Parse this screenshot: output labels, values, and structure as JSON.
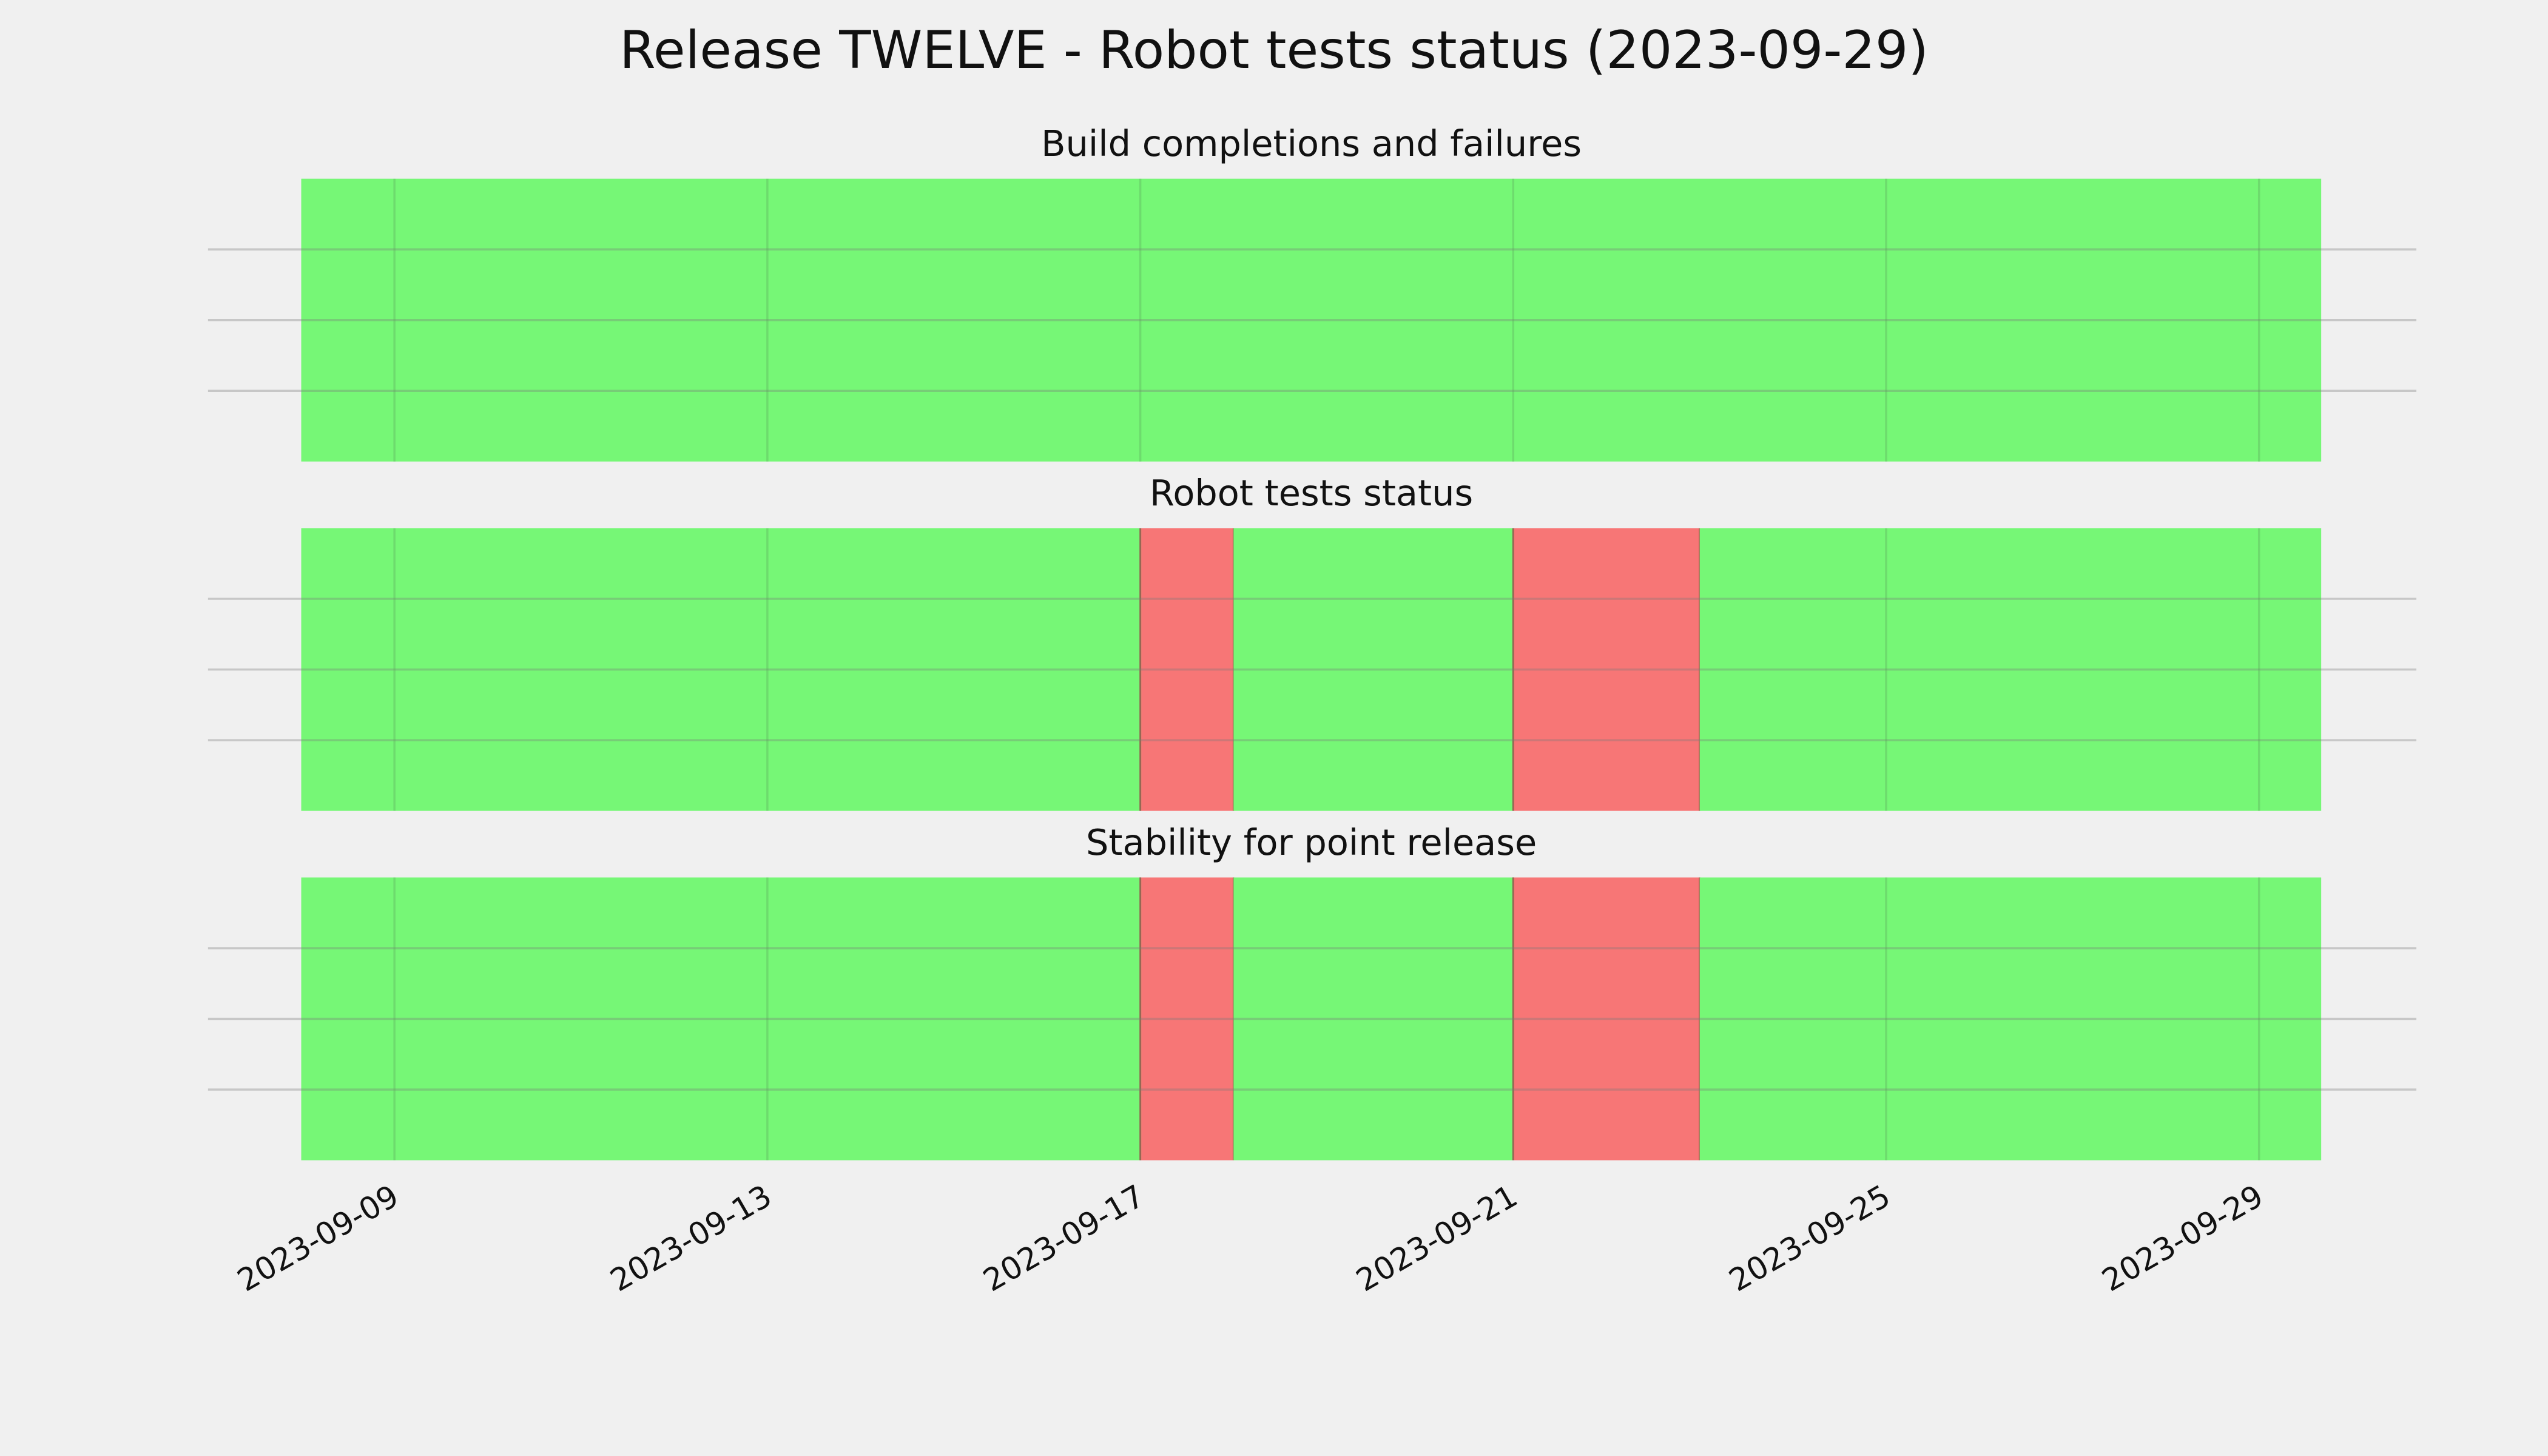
{
  "title": "Release TWELVE - Robot tests status (2023-09-29)",
  "chart_data": [
    {
      "type": "timeline",
      "title": "Build completions and failures",
      "segments": [
        {
          "start": "2023-09-08",
          "end": "2023-09-29T16:00",
          "color": "#76f776"
        }
      ],
      "xlim": [
        "2023-09-07",
        "2023-09-30T16:30"
      ],
      "xticks": [
        "2023-09-09",
        "2023-09-13",
        "2023-09-17",
        "2023-09-21",
        "2023-09-25",
        "2023-09-29"
      ],
      "ylim": [
        0,
        1
      ],
      "yticks": [
        0.25,
        0.5,
        0.75
      ],
      "grid": true
    },
    {
      "type": "timeline",
      "title": "Robot tests status",
      "segments": [
        {
          "start": "2023-09-08",
          "end": "2023-09-17",
          "color": "#76f776"
        },
        {
          "start": "2023-09-17",
          "end": "2023-09-18",
          "color": "#f77676"
        },
        {
          "start": "2023-09-18",
          "end": "2023-09-21",
          "color": "#76f776"
        },
        {
          "start": "2023-09-21",
          "end": "2023-09-23",
          "color": "#f77676"
        },
        {
          "start": "2023-09-23",
          "end": "2023-09-29T16:00",
          "color": "#76f776"
        }
      ],
      "xlim": [
        "2023-09-07",
        "2023-09-30T16:30"
      ],
      "xticks": [
        "2023-09-09",
        "2023-09-13",
        "2023-09-17",
        "2023-09-21",
        "2023-09-25",
        "2023-09-29"
      ],
      "ylim": [
        0,
        1
      ],
      "yticks": [
        0.25,
        0.5,
        0.75
      ],
      "grid": true
    },
    {
      "type": "timeline",
      "title": "Stability for point release",
      "segments": [
        {
          "start": "2023-09-08",
          "end": "2023-09-17",
          "color": "#76f776"
        },
        {
          "start": "2023-09-17",
          "end": "2023-09-18",
          "color": "#f77676"
        },
        {
          "start": "2023-09-18",
          "end": "2023-09-21",
          "color": "#76f776"
        },
        {
          "start": "2023-09-21",
          "end": "2023-09-23",
          "color": "#f77676"
        },
        {
          "start": "2023-09-23",
          "end": "2023-09-29T16:00",
          "color": "#76f776"
        }
      ],
      "xlim": [
        "2023-09-07",
        "2023-09-30T16:30"
      ],
      "xticks": [
        "2023-09-09",
        "2023-09-13",
        "2023-09-17",
        "2023-09-21",
        "2023-09-25",
        "2023-09-29"
      ],
      "ylim": [
        0,
        1
      ],
      "yticks": [
        0.25,
        0.5,
        0.75
      ],
      "grid": true
    }
  ]
}
